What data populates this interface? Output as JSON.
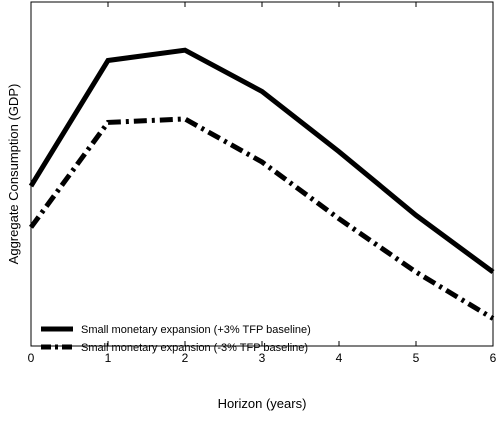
{
  "chart_data": {
    "type": "line",
    "title": "",
    "xlabel": "Horizon (years)",
    "ylabel": "Aggregate Consumption (GDP)",
    "x": [
      0,
      1,
      2,
      3,
      4,
      5,
      6
    ],
    "xticks": [
      "0",
      "1",
      "2",
      "3",
      "4",
      "5",
      "6"
    ],
    "xlim": [
      0,
      6
    ],
    "ylim": [
      0,
      1
    ],
    "y_ticks_shown": false,
    "grid": false,
    "legend_position": "bottom-left",
    "series": [
      {
        "name": "Small monetary expansion (+3% TFP baseline)",
        "style": "solid",
        "color": "#000000",
        "values": [
          0.465,
          0.83,
          0.86,
          0.74,
          0.565,
          0.38,
          0.215
        ]
      },
      {
        "name": "Small monetary expansion (-3% TFP baseline)",
        "style": "dashdot",
        "color": "#000000",
        "values": [
          0.345,
          0.65,
          0.66,
          0.535,
          0.37,
          0.215,
          0.08
        ]
      }
    ]
  }
}
